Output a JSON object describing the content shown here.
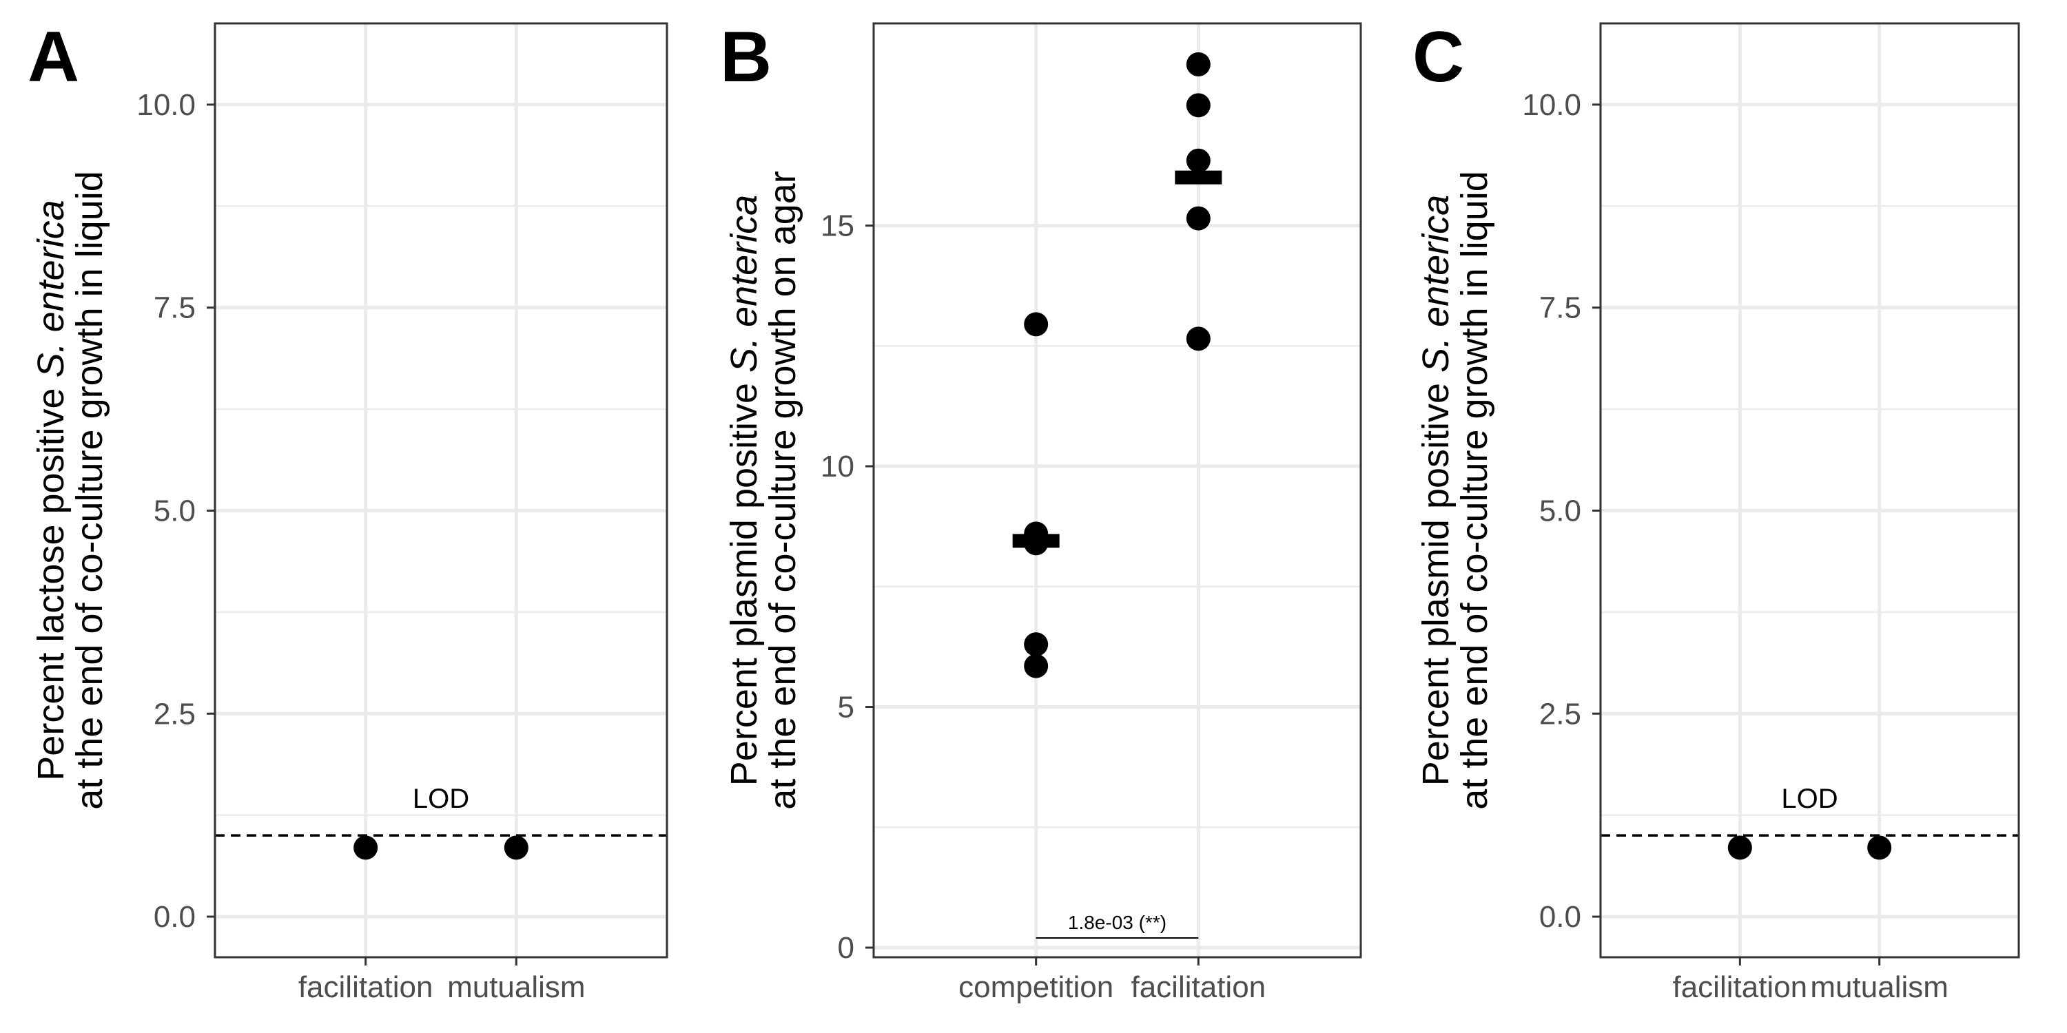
{
  "figure": {
    "background": "#ffffff",
    "gridline_color": "#ebebeb",
    "point_color": "#000000"
  },
  "chart_data": [
    {
      "panel": "A",
      "type": "scatter",
      "categories": [
        "facilitation",
        "mutualism"
      ],
      "ylim": [
        -0.5,
        11.0
      ],
      "yticks": [
        0.0,
        2.5,
        5.0,
        7.5,
        10.0
      ],
      "ytick_labels": [
        "0.0",
        "2.5",
        "5.0",
        "7.5",
        "10.0"
      ],
      "ylabel_parts": [
        "Percent lactose positive ",
        "S. enterica"
      ],
      "ylabel_line2": "at the end of co-culture  growth in liquid",
      "xlabel": "",
      "grid": true,
      "points": [
        {
          "category": "facilitation",
          "value": 0.85
        },
        {
          "category": "mutualism",
          "value": 0.85
        }
      ],
      "reference_line": {
        "value": 1.0,
        "style": "dashed",
        "label": "LOD"
      }
    },
    {
      "panel": "B",
      "type": "scatter",
      "categories": [
        "competition",
        "facilitation"
      ],
      "ylim": [
        -0.2,
        19.2
      ],
      "yticks": [
        0,
        5,
        10,
        15
      ],
      "ytick_labels": [
        "0",
        "5",
        "10",
        "15"
      ],
      "ylabel_parts": [
        "Percent plasmid positive ",
        "S. enterica"
      ],
      "ylabel_line2": "at the end of co-culture  growth on agar",
      "xlabel": "",
      "grid": true,
      "points": [
        {
          "category": "competition",
          "value": 12.95
        },
        {
          "category": "competition",
          "value": 8.6
        },
        {
          "category": "competition",
          "value": 8.4
        },
        {
          "category": "competition",
          "value": 6.3
        },
        {
          "category": "competition",
          "value": 5.85
        },
        {
          "category": "facilitation",
          "value": 18.35
        },
        {
          "category": "facilitation",
          "value": 17.5
        },
        {
          "category": "facilitation",
          "value": 16.35
        },
        {
          "category": "facilitation",
          "value": 15.15
        },
        {
          "category": "facilitation",
          "value": 12.65
        }
      ],
      "means": [
        {
          "category": "competition",
          "value": 8.45
        },
        {
          "category": "facilitation",
          "value": 16.0
        }
      ],
      "significance": {
        "from": "competition",
        "to": "facilitation",
        "value": 0.2,
        "label": "1.8e-03 (**)"
      }
    },
    {
      "panel": "C",
      "type": "scatter",
      "categories": [
        "facilitation",
        "mutualism"
      ],
      "ylim": [
        -0.5,
        11.0
      ],
      "yticks": [
        0.0,
        2.5,
        5.0,
        7.5,
        10.0
      ],
      "ytick_labels": [
        "0.0",
        "2.5",
        "5.0",
        "7.5",
        "10.0"
      ],
      "ylabel_parts": [
        "Percent plasmid positive ",
        "S. enterica"
      ],
      "ylabel_line2": "at the end of co-culture  growth in liquid",
      "xlabel": "",
      "grid": true,
      "points": [
        {
          "category": "facilitation",
          "value": 0.85
        },
        {
          "category": "mutualism",
          "value": 0.85
        }
      ],
      "reference_line": {
        "value": 1.0,
        "style": "dashed",
        "label": "LOD"
      }
    }
  ]
}
